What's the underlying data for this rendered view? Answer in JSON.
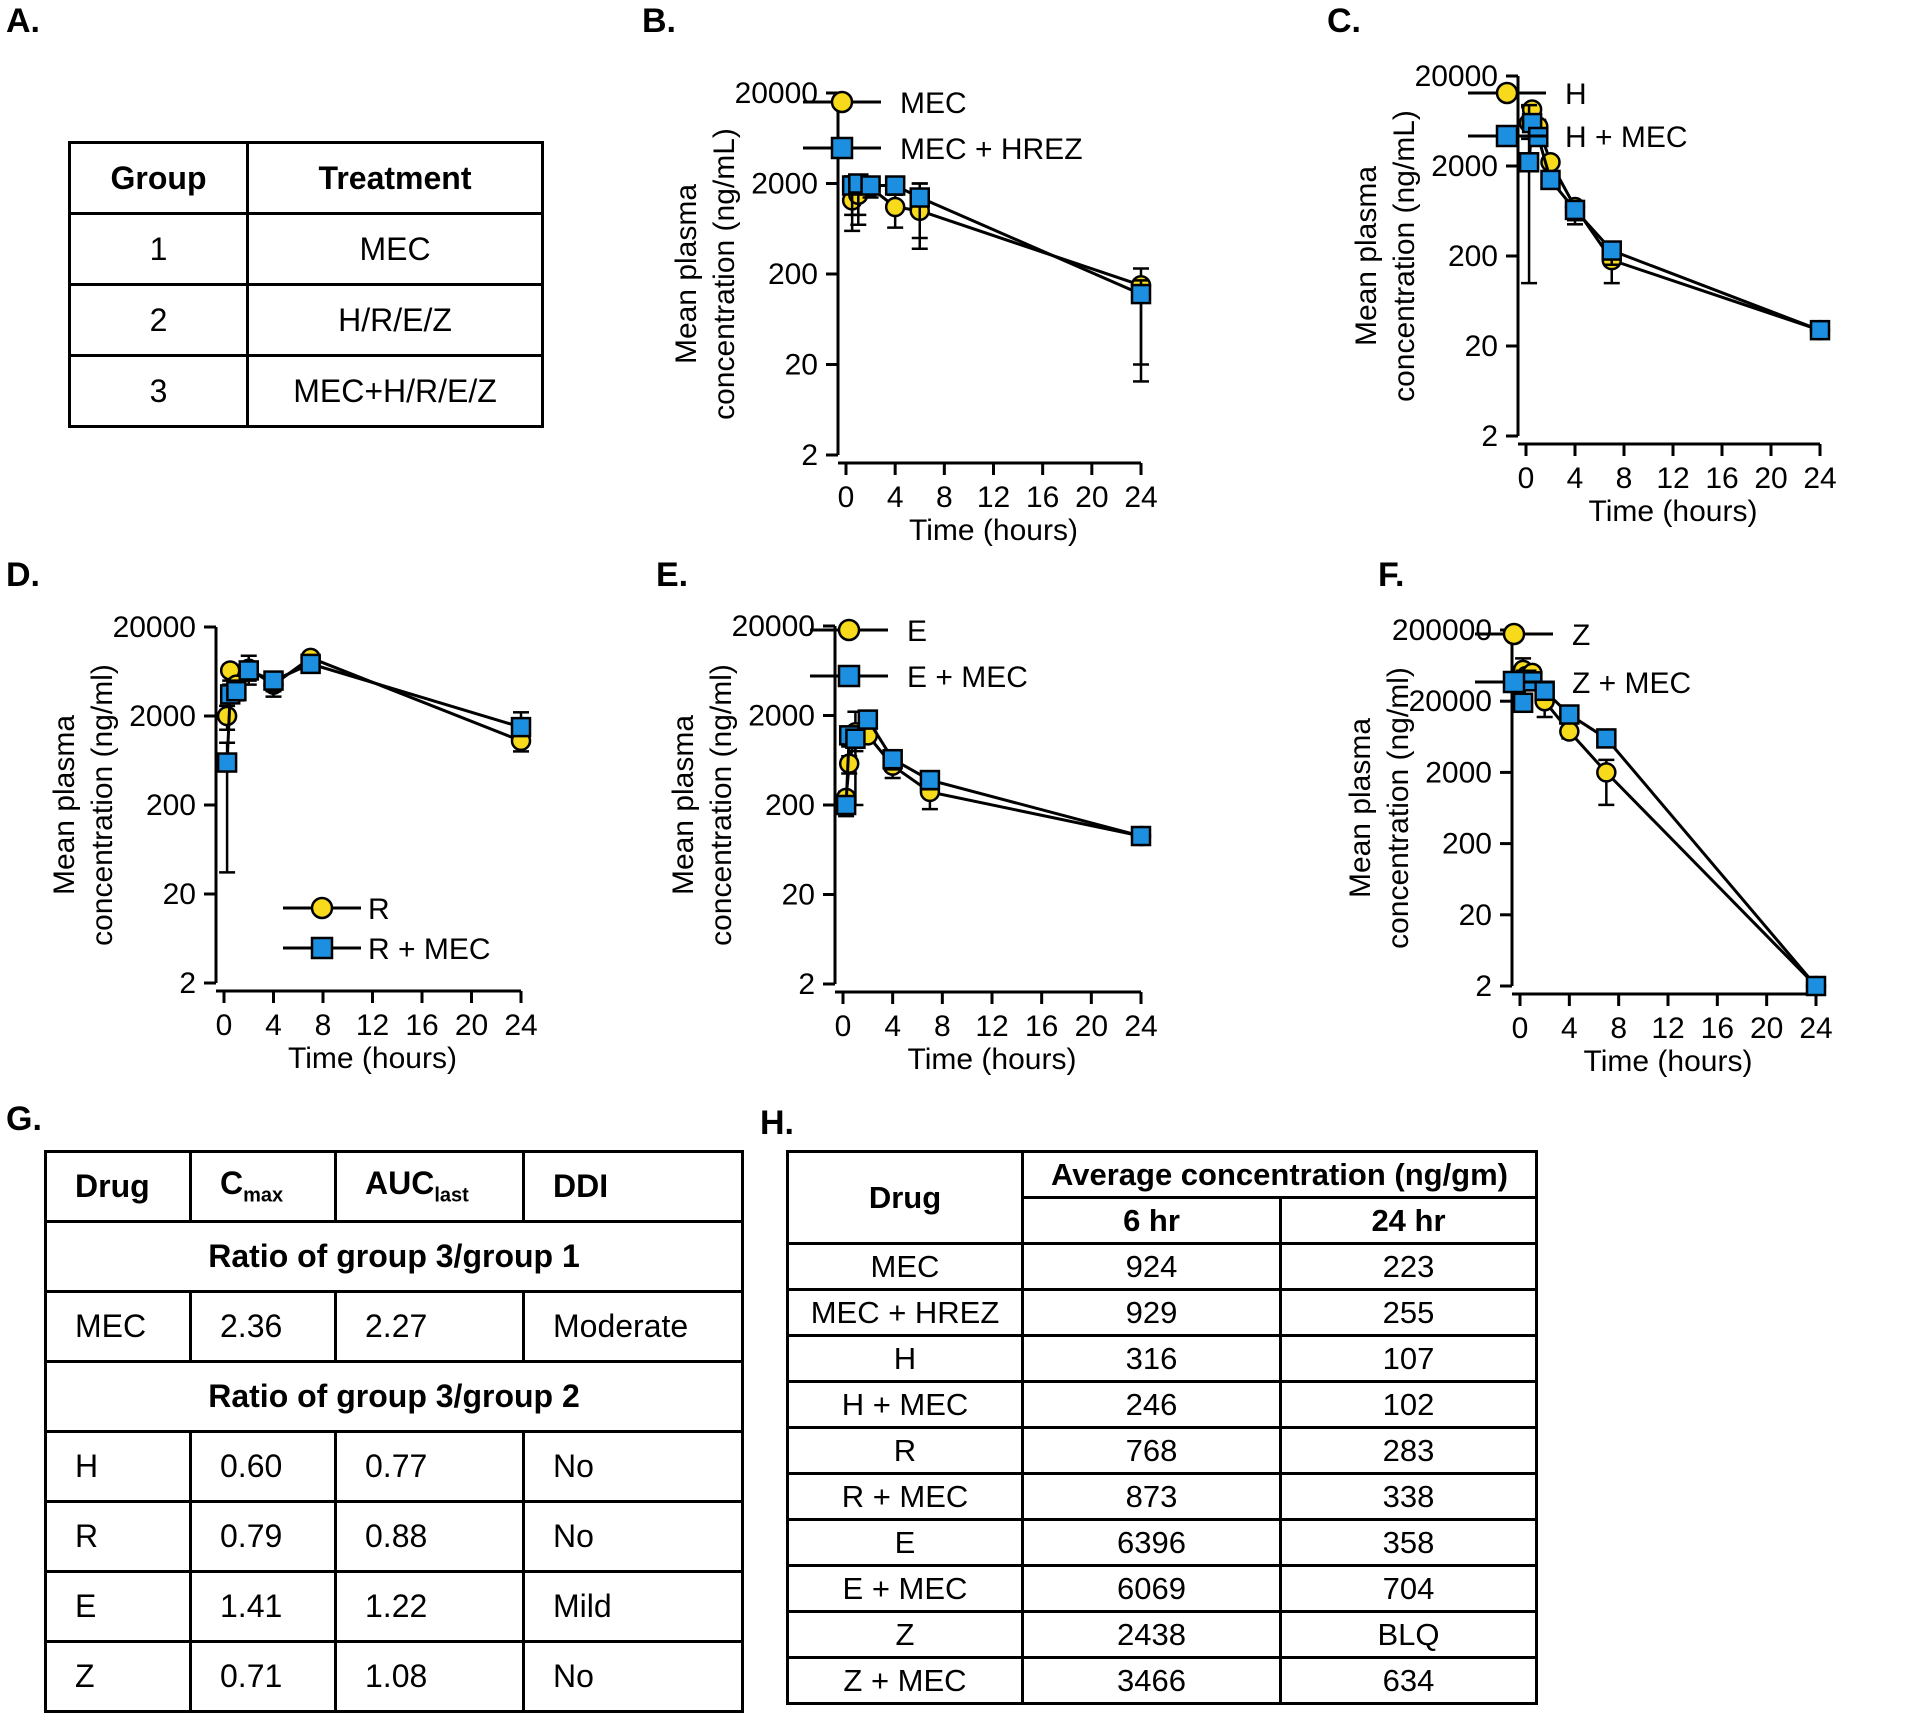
{
  "panel_labels": {
    "A": "A.",
    "B": "B.",
    "C": "C.",
    "D": "D.",
    "E": "E.",
    "F": "F.",
    "G": "G.",
    "H": "H."
  },
  "colors": {
    "circle": "#F7DA1B",
    "square": "#1C8FE0",
    "line": "#000000"
  },
  "table_a": {
    "headers": [
      "Group",
      "Treatment"
    ],
    "rows": [
      [
        "1",
        "MEC"
      ],
      [
        "2",
        "H/R/E/Z"
      ],
      [
        "3",
        "MEC+H/R/E/Z"
      ]
    ]
  },
  "table_g": {
    "headers": {
      "drug": "Drug",
      "cmax_main": "C",
      "cmax_sub": "max",
      "auc_main": "AUC",
      "auc_sub": "last",
      "ddi": "DDI"
    },
    "section1": "Ratio of group 3/group 1",
    "section2": "Ratio of group 3/group 2",
    "rows1": [
      [
        "MEC",
        "2.36",
        "2.27",
        "Moderate"
      ]
    ],
    "rows2": [
      [
        "H",
        "0.60",
        "0.77",
        "No"
      ],
      [
        "R",
        "0.79",
        "0.88",
        "No"
      ],
      [
        "E",
        "1.41",
        "1.22",
        "Mild"
      ],
      [
        "Z",
        "0.71",
        "1.08",
        "No"
      ]
    ]
  },
  "table_h": {
    "drug_header": "Drug",
    "group_header": "Average concentration (ng/gm)",
    "col_headers": [
      "6 hr",
      "24 hr"
    ],
    "rows": [
      [
        "MEC",
        "924",
        "223"
      ],
      [
        "MEC + HREZ",
        "929",
        "255"
      ],
      [
        "H",
        "316",
        "107"
      ],
      [
        "H + MEC",
        "246",
        "102"
      ],
      [
        "R",
        "768",
        "283"
      ],
      [
        "R + MEC",
        "873",
        "338"
      ],
      [
        "E",
        "6396",
        "358"
      ],
      [
        "E + MEC",
        "6069",
        "704"
      ],
      [
        "Z",
        "2438",
        "BLQ"
      ],
      [
        "Z + MEC",
        "3466",
        "634"
      ]
    ]
  },
  "chart_data": [
    {
      "id": "B",
      "type": "line",
      "yscale": "log",
      "xlim": [
        0,
        24
      ],
      "ylim": [
        2,
        20000
      ],
      "xticks": [
        0,
        4,
        8,
        12,
        16,
        20,
        24
      ],
      "yticks": [
        2,
        20,
        200,
        2000,
        20000
      ],
      "xlabel": "Time (hours)",
      "ylabel": [
        "Mean plasma",
        "concentration (ng/mL)"
      ],
      "legend_position": "top-right",
      "series": [
        {
          "name": "MEC",
          "marker": "circle",
          "x": [
            0.5,
            1,
            2,
            4,
            6,
            24
          ],
          "y": [
            1300,
            1500,
            1800,
            1100,
            1000,
            150
          ],
          "err_lo": [
            600,
            700,
            0,
            650,
            380,
            20
          ],
          "err_hi": [
            1900,
            2100,
            0,
            1500,
            2000,
            230
          ]
        },
        {
          "name": "MEC + HREZ",
          "marker": "square",
          "x": [
            0.5,
            1,
            2,
            4,
            6,
            24
          ],
          "y": [
            1900,
            2000,
            1900,
            1900,
            1400,
            120
          ],
          "err_lo": [
            900,
            900,
            1400,
            1900,
            500,
            13
          ],
          "err_hi": [
            2400,
            2300,
            2100,
            1900,
            2000,
            170
          ]
        }
      ]
    },
    {
      "id": "C",
      "type": "line",
      "yscale": "log",
      "xlim": [
        0,
        24
      ],
      "ylim": [
        2,
        20000
      ],
      "xticks": [
        0,
        4,
        8,
        12,
        16,
        20,
        24
      ],
      "yticks": [
        2,
        20,
        200,
        2000,
        20000
      ],
      "xlabel": "Time (hours)",
      "ylabel": [
        "Mean plasma",
        "concentration (ng/mL)"
      ],
      "legend_position": "top-right",
      "series": [
        {
          "name": "H",
          "marker": "circle",
          "x": [
            0.25,
            0.5,
            1,
            2,
            4,
            7,
            24
          ],
          "y": [
            6000,
            8500,
            5500,
            2200,
            700,
            180,
            30
          ],
          "err_lo": [
            4000,
            8500,
            4500,
            2200,
            500,
            100,
            30
          ],
          "err_hi": [
            9000,
            9500,
            6500,
            2200,
            800,
            260,
            30
          ]
        },
        {
          "name": "H + MEC",
          "marker": "square",
          "x": [
            0.25,
            0.5,
            1,
            2,
            4,
            7,
            24
          ],
          "y": [
            2200,
            6000,
            4200,
            1400,
            650,
            230,
            30
          ],
          "err_lo": [
            100,
            5000,
            3800,
            1200,
            450,
            160,
            30
          ],
          "err_hi": [
            9500,
            7000,
            5000,
            1600,
            800,
            280,
            30
          ]
        }
      ]
    },
    {
      "id": "D",
      "type": "line",
      "yscale": "log",
      "xlim": [
        0,
        24
      ],
      "ylim": [
        2,
        20000
      ],
      "xticks": [
        0,
        4,
        8,
        12,
        16,
        20,
        24
      ],
      "yticks": [
        2,
        20,
        200,
        2000,
        20000
      ],
      "xlabel": "Time (hours)",
      "ylabel": [
        "Mean plasma",
        "concentration (ng/ml)"
      ],
      "legend_position": "bottom-center",
      "series": [
        {
          "name": "R",
          "marker": "circle",
          "x": [
            0.25,
            0.5,
            1,
            2,
            4,
            7,
            24
          ],
          "y": [
            2000,
            6500,
            4500,
            6800,
            4500,
            9000,
            1050
          ],
          "err_lo": [
            1400,
            5000,
            3300,
            5000,
            3300,
            7500,
            800
          ],
          "err_hi": [
            2600,
            7500,
            5500,
            8000,
            5500,
            10000,
            1300
          ]
        },
        {
          "name": "R + MEC",
          "marker": "square",
          "x": [
            0.25,
            0.5,
            1,
            2,
            4,
            7,
            24
          ],
          "y": [
            600,
            3500,
            3800,
            6500,
            5000,
            7700,
            1500
          ],
          "err_lo": [
            35,
            3000,
            3000,
            4500,
            3800,
            6500,
            1200
          ],
          "err_hi": [
            1000,
            4500,
            5000,
            9500,
            5500,
            8500,
            2200
          ]
        }
      ]
    },
    {
      "id": "E",
      "type": "line",
      "yscale": "log",
      "xlim": [
        0,
        24
      ],
      "ylim": [
        2,
        20000
      ],
      "xticks": [
        0,
        4,
        8,
        12,
        16,
        20,
        24
      ],
      "yticks": [
        2,
        20,
        200,
        2000,
        20000
      ],
      "xlabel": "Time (hours)",
      "ylabel": [
        "Mean plasma",
        "concentration (ng/ml)"
      ],
      "legend_position": "top-right",
      "series": [
        {
          "name": "E",
          "marker": "circle",
          "x": [
            0.25,
            0.5,
            1,
            2,
            4,
            7,
            24
          ],
          "y": [
            240,
            580,
            1300,
            1200,
            550,
            280,
            90
          ],
          "err_lo": [
            200,
            450,
            200,
            1000,
            400,
            180,
            80
          ],
          "err_hi": [
            280,
            700,
            2200,
            1400,
            650,
            380,
            100
          ]
        },
        {
          "name": "E + MEC",
          "marker": "square",
          "x": [
            0.25,
            0.5,
            1,
            2,
            4,
            7,
            24
          ],
          "y": [
            200,
            1200,
            1100,
            1800,
            650,
            380,
            90
          ],
          "err_lo": [
            150,
            900,
            800,
            1500,
            500,
            300,
            80
          ],
          "err_hi": [
            250,
            1500,
            1400,
            2200,
            750,
            450,
            100
          ]
        }
      ]
    },
    {
      "id": "F",
      "type": "line",
      "yscale": "log",
      "xlim": [
        0,
        24
      ],
      "ylim": [
        2,
        200000
      ],
      "xticks": [
        0,
        4,
        8,
        12,
        16,
        20,
        24
      ],
      "yticks": [
        2,
        20,
        200,
        2000,
        20000,
        200000
      ],
      "xlabel": "Time (hours)",
      "ylabel": [
        "Mean plasma",
        "concentration (ng/ml)"
      ],
      "legend_position": "top-right",
      "series": [
        {
          "name": "Z",
          "marker": "circle",
          "x": [
            0.25,
            0.5,
            1,
            2,
            4,
            7,
            24
          ],
          "y": [
            55000,
            45000,
            50000,
            20000,
            7500,
            2000,
            2
          ],
          "err_lo": [
            40000,
            35000,
            40000,
            12000,
            6000,
            700,
            2
          ],
          "err_hi": [
            80000,
            55000,
            60000,
            28000,
            9000,
            3000,
            2
          ]
        },
        {
          "name": "Z + MEC",
          "marker": "square",
          "x": [
            0.25,
            0.5,
            1,
            2,
            4,
            7,
            24
          ],
          "y": [
            19000,
            40000,
            38000,
            28000,
            13000,
            6000,
            2
          ],
          "err_lo": [
            15000,
            30000,
            30000,
            22000,
            11000,
            5000,
            2
          ],
          "err_hi": [
            23000,
            50000,
            45000,
            34000,
            15000,
            7000,
            2
          ]
        }
      ]
    }
  ]
}
